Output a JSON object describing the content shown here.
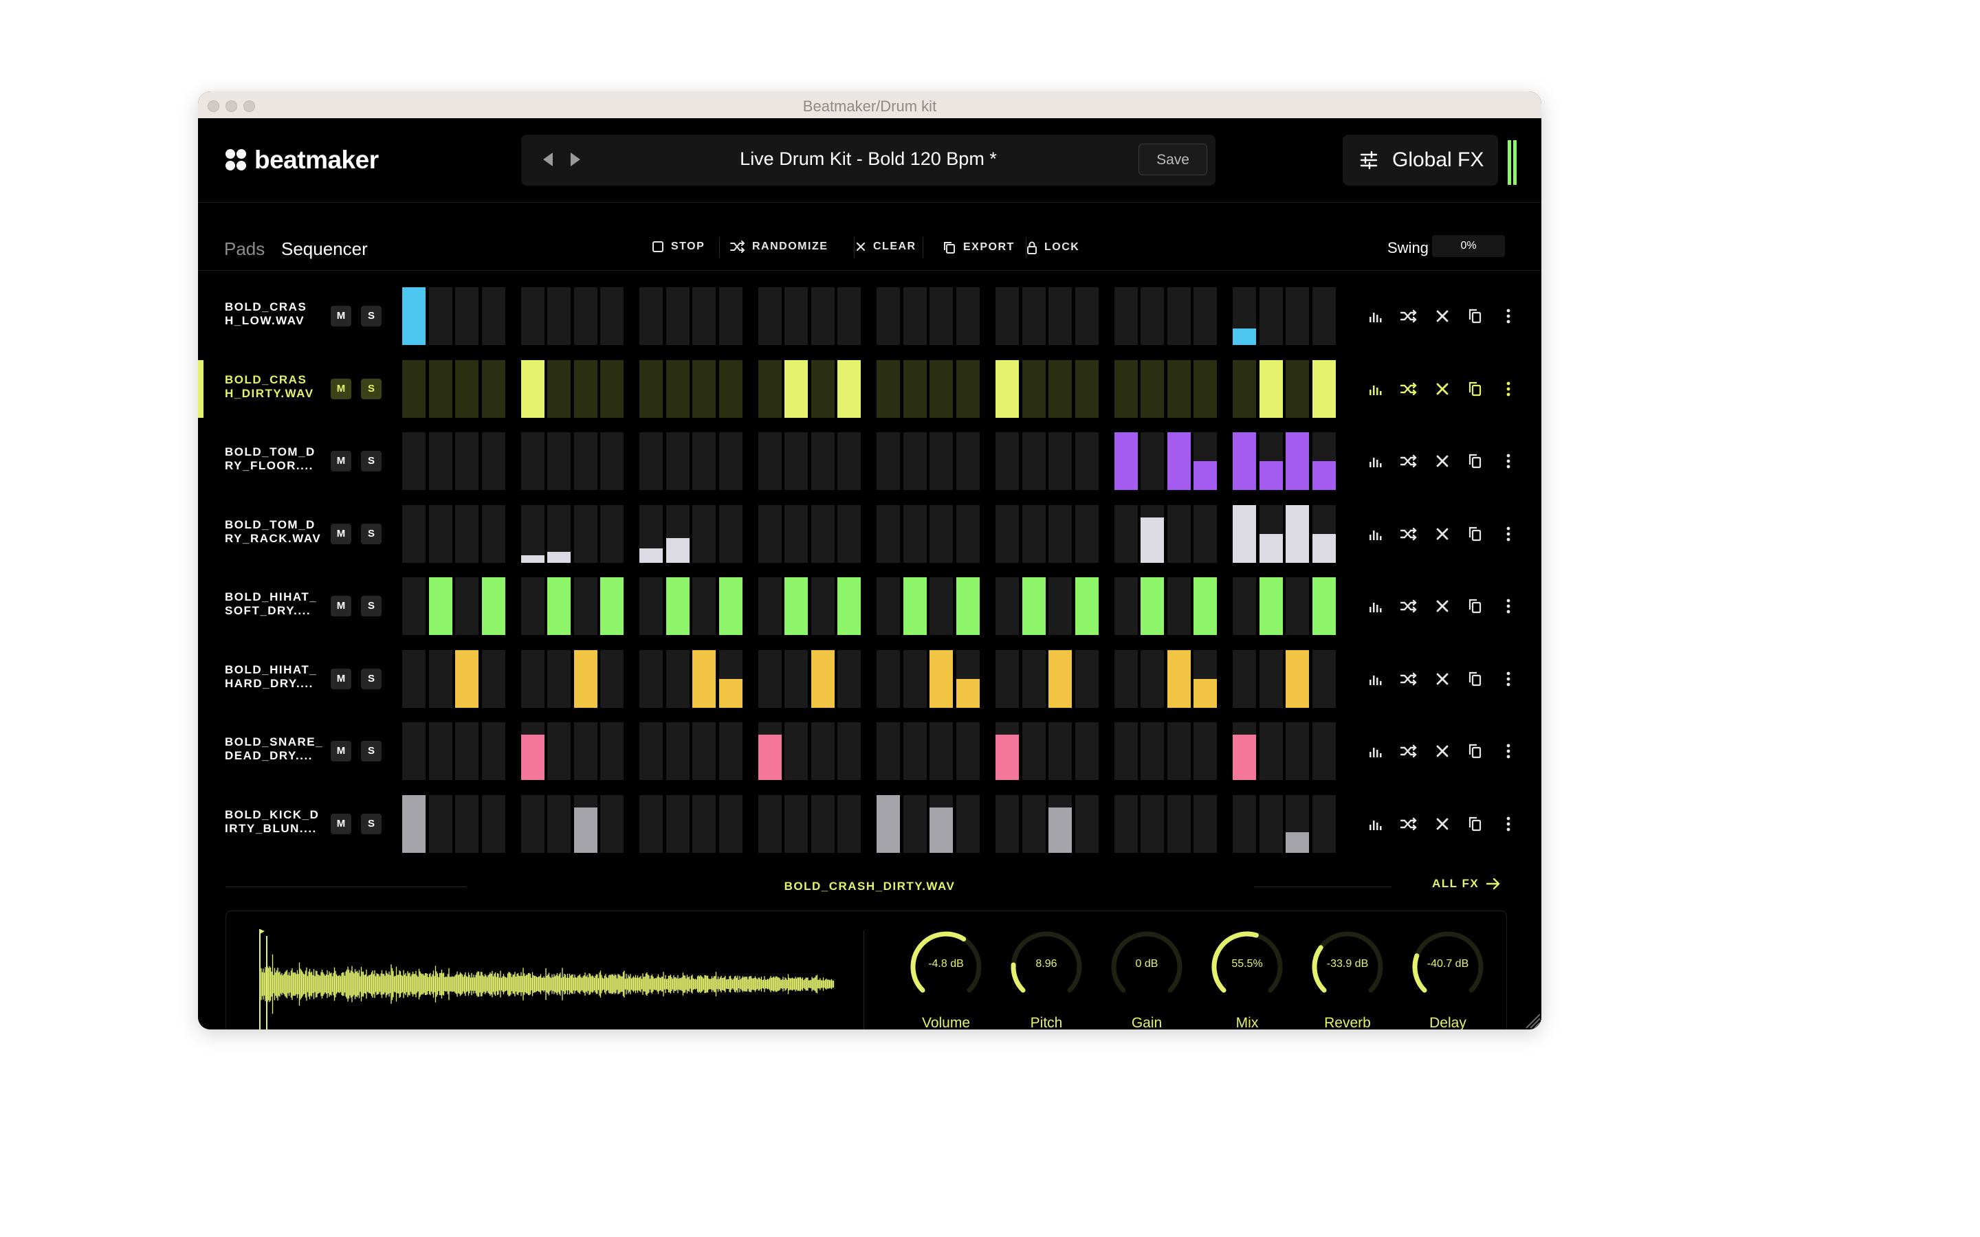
{
  "window": {
    "title": "Beatmaker/Drum kit"
  },
  "app": {
    "logo": "beatmaker",
    "accent": "#e4f26e"
  },
  "preset": {
    "name": "Live Drum Kit - Bold 120 Bpm *",
    "save_label": "Save",
    "prev_icon": "triangle-left-icon",
    "next_icon": "triangle-right-icon"
  },
  "global_fx": {
    "label": "Global FX",
    "icon": "sliders-icon"
  },
  "tabs": [
    {
      "label": "Pads",
      "active": false
    },
    {
      "label": "Sequencer",
      "active": true
    }
  ],
  "toolbar": {
    "stop": "STOP",
    "randomize": "RANDOMIZE",
    "clear": "CLEAR",
    "export": "EXPORT",
    "lock": "LOCK"
  },
  "swing": {
    "label": "Swing",
    "value": "0%"
  },
  "tracks": [
    {
      "name": "BOLD_CRAS\nH_LOW.WAV",
      "color": "#4cc6f0",
      "selected": false,
      "m": "M",
      "s": "S",
      "steps": [
        1,
        0,
        0,
        0,
        0,
        0,
        0,
        0,
        0,
        0,
        0,
        0,
        0,
        0,
        0,
        0,
        0,
        0,
        0,
        0,
        0,
        0,
        0,
        0,
        0,
        0,
        0,
        0,
        0.28,
        0,
        0,
        0
      ]
    },
    {
      "name": "BOLD_CRAS\nH_DIRTY.WAV",
      "color": "#e4f26e",
      "selected": true,
      "m": "M",
      "s": "S",
      "steps": [
        0,
        0,
        0,
        0,
        1,
        0,
        0,
        0,
        0,
        0,
        0,
        0,
        0,
        1,
        0,
        1,
        0,
        0,
        0,
        0,
        1,
        0,
        0,
        0,
        0,
        0,
        0,
        0,
        0,
        1,
        0,
        1
      ]
    },
    {
      "name": "BOLD_TOM_D\nRY_FLOOR....",
      "color": "#a35bf0",
      "selected": false,
      "m": "M",
      "s": "S",
      "steps": [
        0,
        0,
        0,
        0,
        0,
        0,
        0,
        0,
        0,
        0,
        0,
        0,
        0,
        0,
        0,
        0,
        0,
        0,
        0,
        0,
        0,
        0,
        0,
        0,
        1,
        0,
        1,
        0.5,
        1,
        0.5,
        1,
        0.5
      ]
    },
    {
      "name": "BOLD_TOM_D\nRY_RACK.WAV",
      "color": "#dcdbe3",
      "selected": false,
      "m": "M",
      "s": "S",
      "steps": [
        0,
        0,
        0,
        0,
        0.13,
        0.18,
        0,
        0,
        0.25,
        0.42,
        0,
        0,
        0,
        0,
        0,
        0,
        0,
        0,
        0,
        0,
        0,
        0,
        0,
        0,
        0,
        0.78,
        0,
        0,
        1,
        0.5,
        1,
        0.5
      ]
    },
    {
      "name": "BOLD_HIHAT_\nSOFT_DRY....",
      "color": "#8ef56a",
      "selected": false,
      "m": "M",
      "s": "S",
      "steps": [
        0,
        1,
        0,
        1,
        0,
        1,
        0,
        1,
        0,
        1,
        0,
        1,
        0,
        1,
        0,
        1,
        0,
        1,
        0,
        1,
        0,
        1,
        0,
        1,
        0,
        1,
        0,
        1,
        0,
        1,
        0,
        1
      ]
    },
    {
      "name": "BOLD_HIHAT_\nHARD_DRY....",
      "color": "#f2c443",
      "selected": false,
      "m": "M",
      "s": "S",
      "steps": [
        0,
        0,
        1,
        0,
        0,
        0,
        1,
        0,
        0,
        0,
        1,
        0.5,
        0,
        0,
        1,
        0,
        0,
        0,
        1,
        0.5,
        0,
        0,
        1,
        0,
        0,
        0,
        1,
        0.5,
        0,
        0,
        1,
        0
      ]
    },
    {
      "name": "BOLD_SNARE_\nDEAD_DRY....",
      "color": "#f4769a",
      "selected": false,
      "m": "M",
      "s": "S",
      "steps": [
        0,
        0,
        0,
        0,
        0.78,
        0,
        0,
        0,
        0,
        0,
        0,
        0,
        0.78,
        0,
        0,
        0,
        0,
        0,
        0,
        0,
        0.78,
        0,
        0,
        0,
        0,
        0,
        0,
        0,
        0.78,
        0,
        0,
        0
      ]
    },
    {
      "name": "BOLD_KICK_D\nIRTY_BLUN....",
      "color": "#a4a4aa",
      "selected": false,
      "m": "M",
      "s": "S",
      "steps": [
        1,
        0,
        0,
        0,
        0,
        0,
        0.78,
        0,
        0,
        0,
        0,
        0,
        0,
        0,
        0,
        0,
        1,
        0,
        0.78,
        0,
        0,
        0,
        0.78,
        0,
        0,
        0,
        0,
        0,
        0,
        0,
        0.35,
        0
      ]
    }
  ],
  "track_actions": [
    "bars-icon",
    "shuffle-icon",
    "close-icon",
    "copy-icon",
    "more-vertical-icon"
  ],
  "sample": {
    "file": "BOLD_CRASH_DIRTY.WAV",
    "all_fx": "ALL FX"
  },
  "knobs": [
    {
      "label": "Volume",
      "value": "-4.8 dB",
      "level": 0.62
    },
    {
      "label": "Pitch",
      "value": "8.96",
      "level": 0.18
    },
    {
      "label": "Gain",
      "value": "0 dB",
      "level": 0.0
    },
    {
      "label": "Mix",
      "value": "55.5%",
      "level": 0.56
    },
    {
      "label": "Reverb",
      "value": "-33.9 dB",
      "level": 0.3
    },
    {
      "label": "Delay",
      "value": "-40.7 dB",
      "level": 0.24
    }
  ]
}
